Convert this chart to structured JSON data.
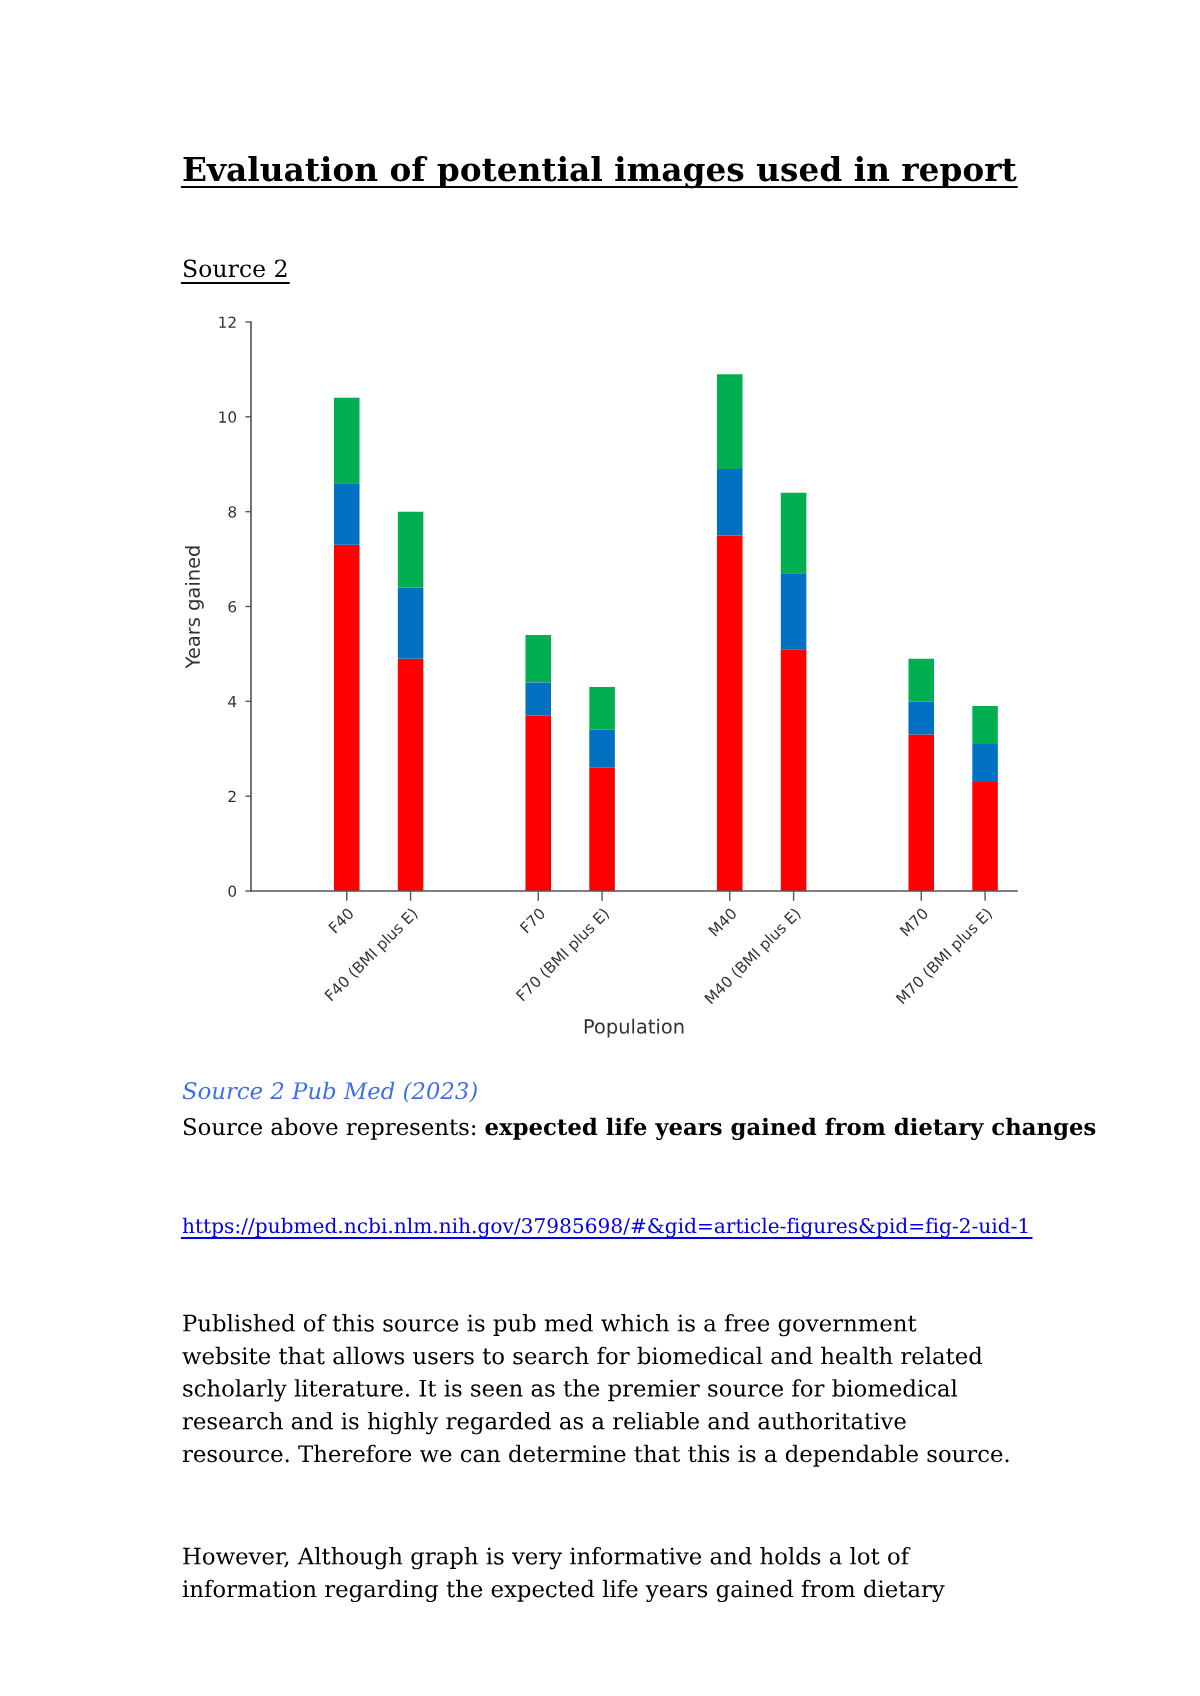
{
  "chart_data": {
    "type": "bar",
    "title": "Evaluation of potential images used in report",
    "subtitle": "Source 2",
    "xlabel": "Population",
    "ylabel": "Years gained",
    "categories": [
      null,
      "F40",
      "F40 (BMI plus E)",
      null,
      "F70",
      "F70 (BMI plus E)",
      null,
      "M40",
      "M40 (BMI plus E)",
      null,
      "M70",
      "M70 (BMI plus E)"
    ],
    "stacked": true,
    "series": [
      {
        "color": "#ff0000",
        "values": [
          null,
          7.3,
          4.9,
          null,
          3.7,
          2.6,
          null,
          7.5,
          5.1,
          null,
          3.3,
          2.3
        ]
      },
      {
        "color": "#0070c0",
        "values": [
          null,
          1.3,
          1.5,
          null,
          0.7,
          0.8,
          null,
          1.4,
          1.6,
          null,
          0.7,
          0.8
        ]
      },
      {
        "color": "#00b050",
        "values": [
          null,
          1.8,
          1.6,
          null,
          1.0,
          0.9,
          null,
          2.0,
          1.7,
          null,
          0.9,
          0.8
        ]
      }
    ],
    "ylim": [
      0,
      12
    ],
    "yticks": [
      0,
      2,
      4,
      6,
      8,
      10,
      12
    ],
    "annotations": [
      "Source 2 Pub Med (2023)",
      "Source above represents:",
      "expected life years gained from dietary changes",
      "https://pubmed.ncbi.nlm.nih.gov/37985698/#&gid=article-figures&pid=fig-2-uid-1",
      "Published of this source is pub med which is a free government website that allows users to search for biomedical and health related scholarly literature. It is seen as the premier source for biomedical research and is highly regarded as a reliable and authoritative resource. Therefore we can determine that this is a dependable source.",
      "However, Although graph is very informative and holds a lot of information regarding the expected life years gained from dietary"
    ]
  }
}
